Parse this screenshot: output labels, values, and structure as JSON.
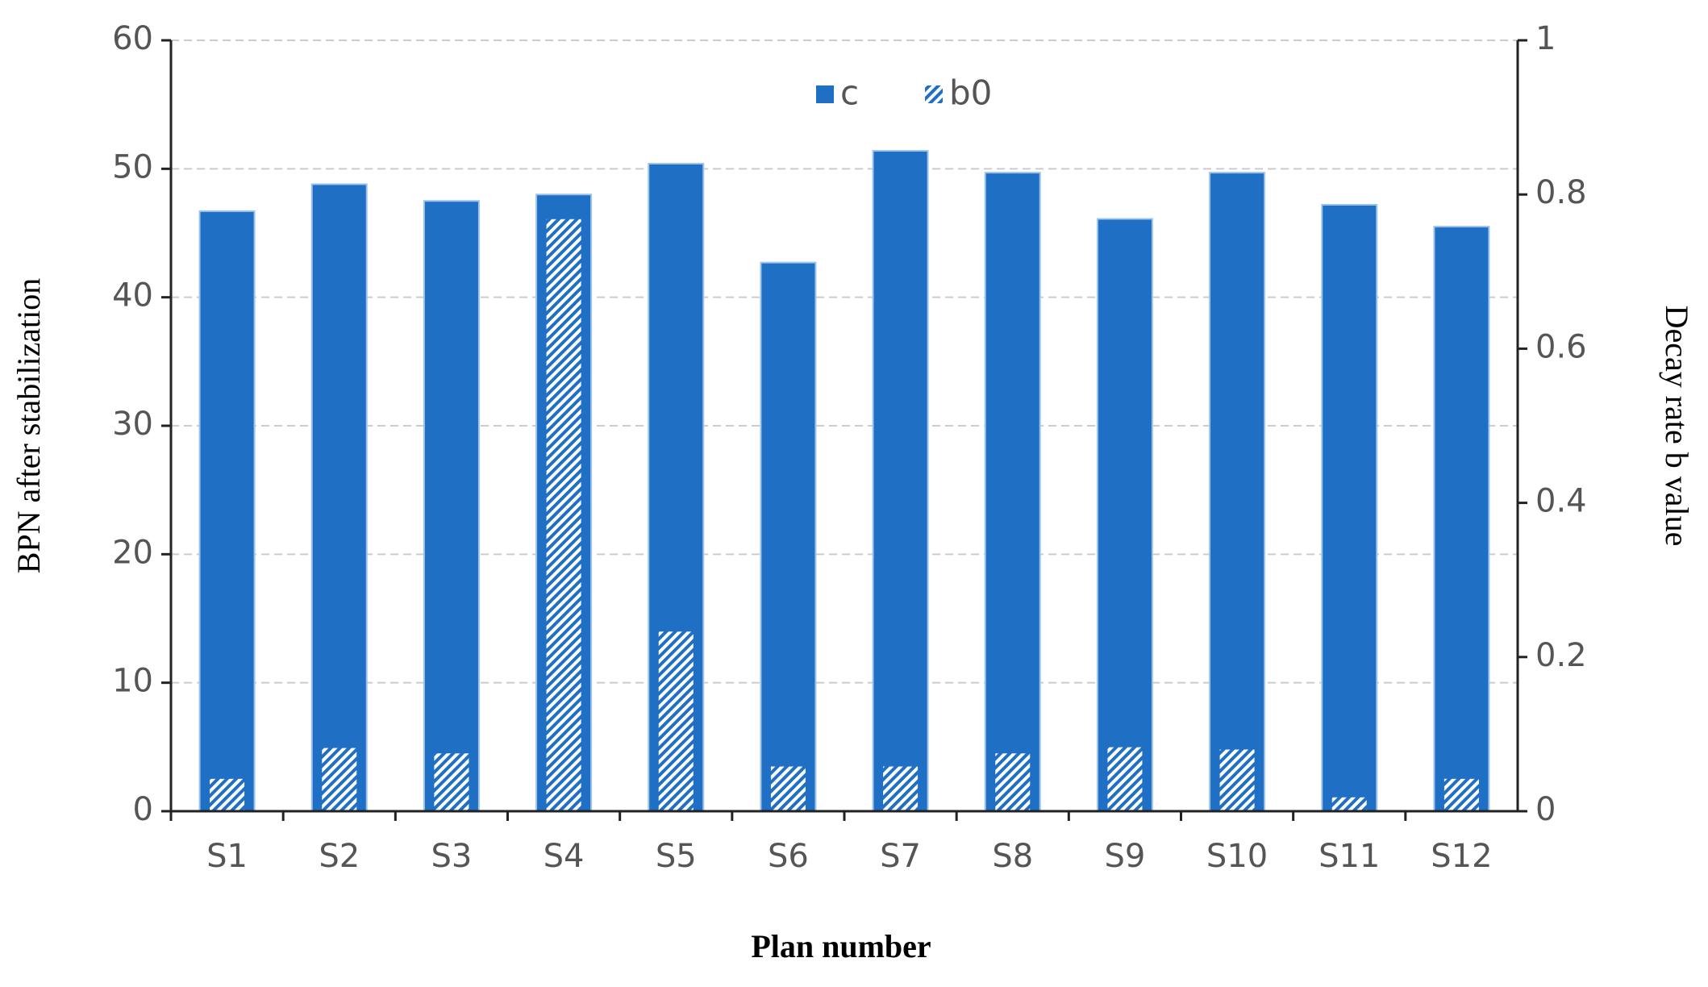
{
  "chart_data": {
    "type": "bar",
    "x_label": "Plan number",
    "y_label": "BPN after stabilization",
    "y2_label": "Decay rate b value",
    "categories": [
      "S1",
      "S2",
      "S3",
      "S4",
      "S5",
      "S6",
      "S7",
      "S8",
      "S9",
      "S10",
      "S11",
      "S12"
    ],
    "series": [
      {
        "name": "c",
        "color": "#1f6fc5",
        "values": [
          46.7,
          48.8,
          47.5,
          48.0,
          50.4,
          42.7,
          51.4,
          49.7,
          46.1,
          49.7,
          47.2,
          45.5
        ]
      },
      {
        "name": "b0",
        "color": "#1f6fc5",
        "axis": "y2",
        "hatch": true,
        "values": [
          0.042,
          0.082,
          0.075,
          0.768,
          0.233,
          0.058,
          0.058,
          0.075,
          0.083,
          0.08,
          0.018,
          0.042
        ]
      }
    ],
    "ylim": [
      0,
      60
    ],
    "yticks": [
      0,
      10,
      20,
      30,
      40,
      50,
      60
    ],
    "y2lim": [
      0,
      1
    ],
    "y2ticks": [
      0,
      0.2,
      0.4,
      0.6,
      0.8,
      1
    ],
    "grid": true,
    "legend": "top"
  }
}
